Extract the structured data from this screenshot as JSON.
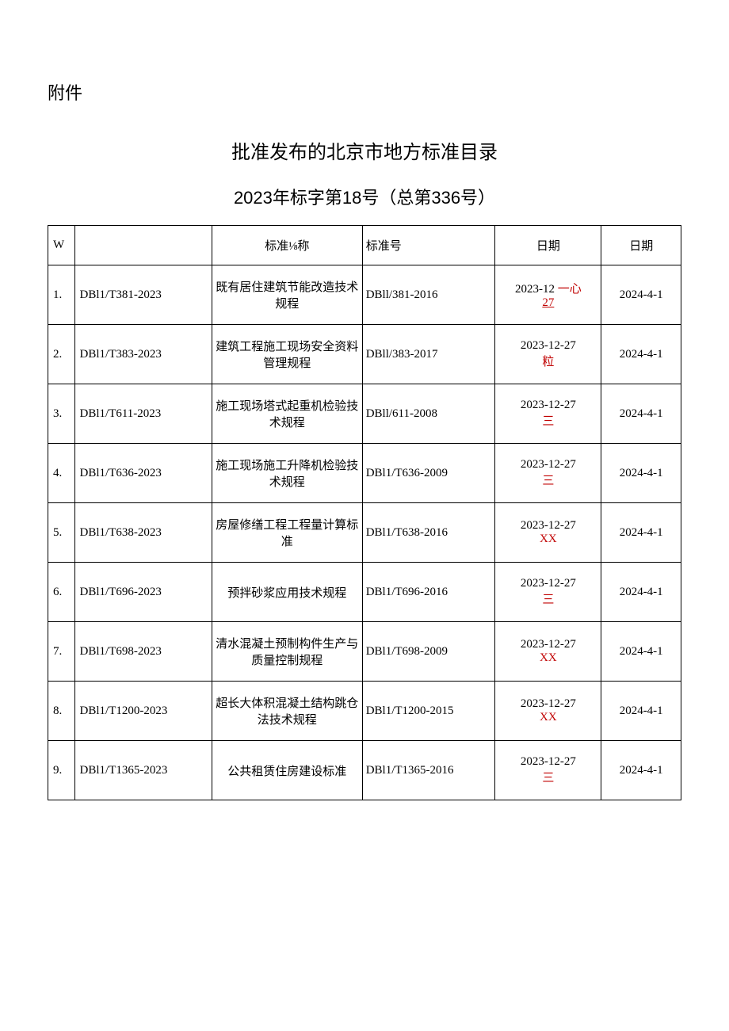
{
  "attachment_label": "附件",
  "title": "批准发布的北京市地方标准目录",
  "subtitle": "2023年标字第18号（总第336号）",
  "table": {
    "headers": {
      "index": "W",
      "code": "",
      "name": "标准⅛称",
      "replace": "标准号",
      "date1": "日期",
      "date2": "日期"
    },
    "rows": [
      {
        "index": "1.",
        "code": "DBl1/T381-2023",
        "name": "既有居住建筑节能改造技术规程",
        "replace": "DBll/381-2016",
        "date1_prefix": "2023-12",
        "date1_red1": "一心",
        "date1_red2": "27",
        "date1_underline": true,
        "date2": "2024-4-1"
      },
      {
        "index": "2.",
        "code": "DBl1/T383-2023",
        "name": "建筑工程施工现场安全资料管理规程",
        "replace": "DBll/383-2017",
        "date1_main": "2023-12-27",
        "date1_red": "粒",
        "date2": "2024-4-1"
      },
      {
        "index": "3.",
        "code": "DBl1/T611-2023",
        "name": "施工现场塔式起重机检验技术规程",
        "replace": "DBll/611-2008",
        "date1_main": "2023-12-27",
        "date1_red": "三",
        "date2": "2024-4-1"
      },
      {
        "index": "4.",
        "code": "DBl1/T636-2023",
        "name": "施工现场施工升降机检验技术规程",
        "replace": "DBl1/T636-2009",
        "date1_main": "2023-12-27",
        "date1_red": "三",
        "date2": "2024-4-1"
      },
      {
        "index": "5.",
        "code": "DBl1/T638-2023",
        "name": "房屋修缮工程工程量计算标准",
        "replace": "DBl1/T638-2016",
        "date1_main": "2023-12-27",
        "date1_red": "XX",
        "date2": "2024-4-1"
      },
      {
        "index": "6.",
        "code": "DBl1/T696-2023",
        "name": "预拌砂浆应用技术规程",
        "replace": "DBl1/T696-2016",
        "date1_main": "2023-12-27",
        "date1_red": "三",
        "date2": "2024-4-1"
      },
      {
        "index": "7.",
        "code": "DBl1/T698-2023",
        "name": "清水混凝土预制构件生产与质量控制规程",
        "replace": "DBl1/T698-2009",
        "date1_main": "2023-12-27",
        "date1_red": "XX",
        "date2": "2024-4-1"
      },
      {
        "index": "8.",
        "code": "DBl1/T1200-2023",
        "name": "超长大体积混凝土结构跳仓法技术规程",
        "replace": "DBl1/T1200-2015",
        "date1_main": "2023-12-27",
        "date1_red": "XX",
        "date2": "2024-4-1"
      },
      {
        "index": "9.",
        "code": "DBl1/T1365-2023",
        "name": "公共租赁住房建设标准",
        "replace": "DBl1/T1365-2016",
        "date1_main": "2023-12-27",
        "date1_red": "三",
        "date2": "2024-4-1"
      }
    ]
  }
}
